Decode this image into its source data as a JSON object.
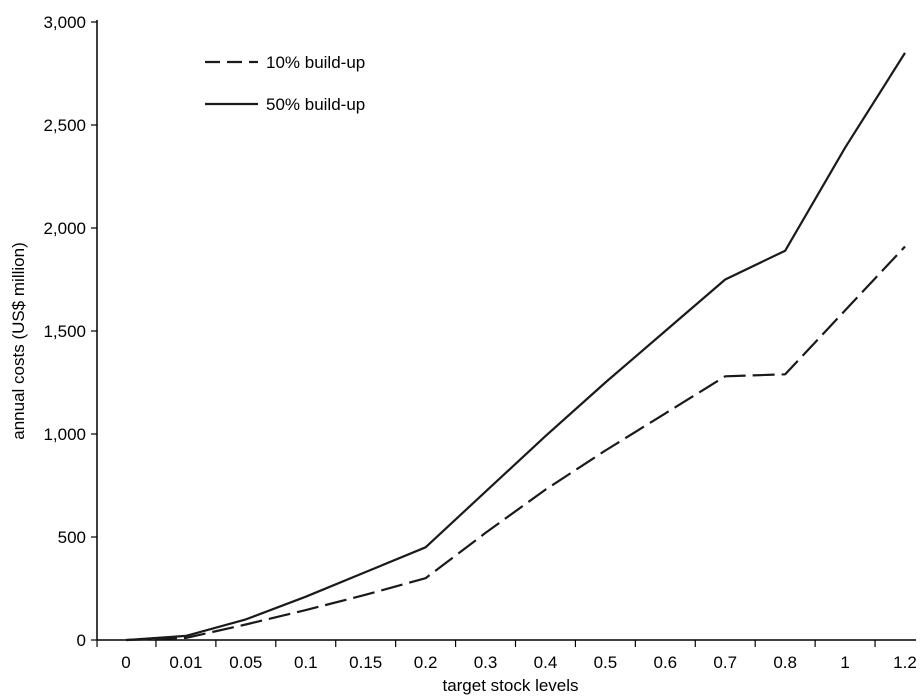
{
  "chart_data": {
    "type": "line",
    "title": "",
    "xlabel": "target stock levels",
    "ylabel": "annual costs (US$ million)",
    "x_is_categorical": true,
    "categories": [
      "0",
      "0.01",
      "0.05",
      "0.1",
      "0.15",
      "0.2",
      "0.3",
      "0.4",
      "0.5",
      "0.6",
      "0.7",
      "0.8",
      "1",
      "1.2"
    ],
    "y_ticks": [
      0,
      500,
      1000,
      1500,
      2000,
      2500,
      3000
    ],
    "y_tick_labels": [
      "0",
      "500",
      "1,000",
      "1,500",
      "2,000",
      "2,500",
      "3,000"
    ],
    "ylim": [
      0,
      3000
    ],
    "grid": false,
    "legend_position": "top-left",
    "series": [
      {
        "name": "10% build-up",
        "style": "dashed",
        "color": "#1a1a1a",
        "values": [
          0,
          10,
          75,
          145,
          220,
          300,
          520,
          730,
          920,
          1100,
          1280,
          1290,
          1600,
          1910
        ]
      },
      {
        "name": "50% build-up",
        "style": "solid",
        "color": "#1a1a1a",
        "values": [
          0,
          20,
          100,
          210,
          330,
          450,
          720,
          990,
          1250,
          1500,
          1750,
          1890,
          2390,
          2850
        ]
      }
    ]
  }
}
